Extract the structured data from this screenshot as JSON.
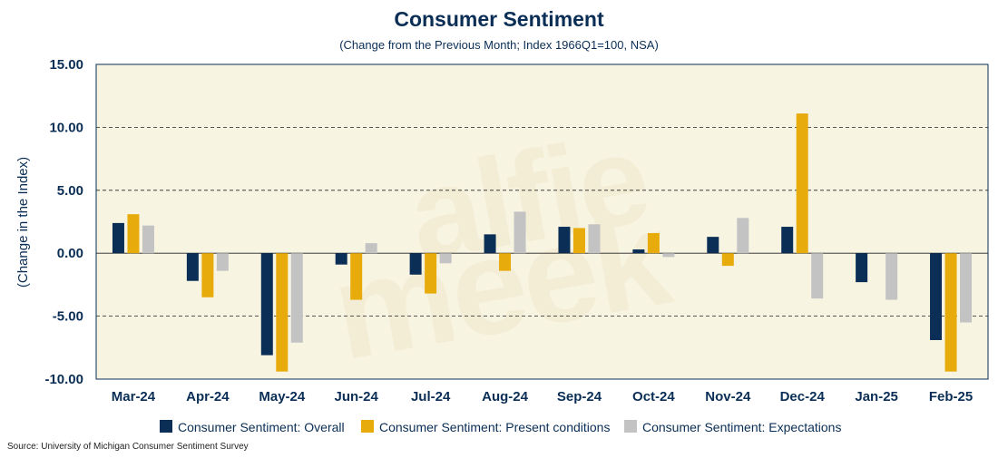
{
  "chart_data": {
    "type": "bar",
    "title": "Consumer Sentiment",
    "subtitle": "(Change from the Previous Month; Index 1966Q1=100, NSA)",
    "ylabel": "(Change in the Index)",
    "xlabel": "",
    "ylim": [
      -10,
      15
    ],
    "yticks": [
      "15.00",
      "10.00",
      "5.00",
      "0.00",
      "-5.00",
      "-10.00"
    ],
    "ytick_values": [
      15,
      10,
      5,
      0,
      -5,
      -10
    ],
    "grid": "horizontal dashed",
    "legend_position": "bottom",
    "categories": [
      "Mar-24",
      "Apr-24",
      "May-24",
      "Jun-24",
      "Jul-24",
      "Aug-24",
      "Sep-24",
      "Oct-24",
      "Nov-24",
      "Dec-24",
      "Jan-25",
      "Feb-25"
    ],
    "series": [
      {
        "name": "Consumer Sentiment: Overall",
        "color": "#0a2e55",
        "values": [
          2.4,
          -2.2,
          -8.1,
          -0.9,
          -1.7,
          1.5,
          2.1,
          0.3,
          1.3,
          2.1,
          -2.3,
          -6.9
        ]
      },
      {
        "name": "Consumer Sentiment: Present conditions",
        "color": "#e8ab0c",
        "values": [
          3.1,
          -3.5,
          -9.4,
          -3.7,
          -3.2,
          -1.4,
          2.0,
          1.6,
          -1.0,
          11.1,
          0.0,
          -9.4
        ]
      },
      {
        "name": "Consumer Sentiment: Expectations",
        "color": "#c3c3c3",
        "values": [
          2.2,
          -1.4,
          -7.1,
          0.8,
          -0.8,
          3.3,
          2.3,
          -0.3,
          2.8,
          -3.6,
          -3.7,
          -5.5
        ]
      }
    ],
    "watermark": "alfie meek",
    "source": "Source: University of Michigan Consumer Sentiment Survey"
  },
  "colors": {
    "plot_background": "#f8f4e2",
    "title_color": "#0a2e55",
    "axis_color": "#0a2e55"
  }
}
